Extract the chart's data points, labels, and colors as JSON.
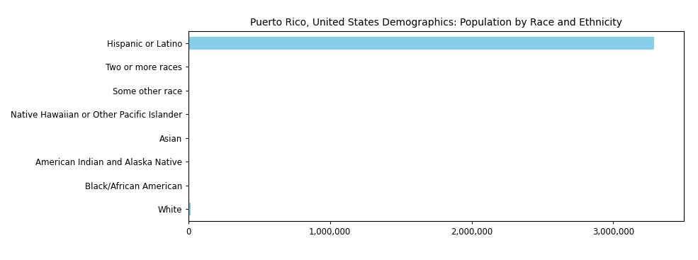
{
  "title": "Puerto Rico, United States Demographics: Population by Race and Ethnicity",
  "categories": [
    "Hispanic or Latino",
    "Two or more races",
    "Some other race",
    "Native Hawaiian or Other Pacific Islander",
    "Asian",
    "American Indian and Alaska Native",
    "Black/African American",
    "White"
  ],
  "values": [
    3285874,
    2000,
    1500,
    500,
    1200,
    1800,
    1000,
    17000
  ],
  "bar_color": "#87CEEB",
  "xlim": [
    0,
    3500000
  ],
  "xticks": [
    0,
    1000000,
    2000000,
    3000000
  ],
  "xtick_labels": [
    "0",
    "1,000,000",
    "2,000,000",
    "3,000,000"
  ],
  "title_fontsize": 10,
  "tick_fontsize": 8.5,
  "bar_height": 0.55,
  "figsize": [
    9.85,
    3.67
  ],
  "dpi": 100
}
